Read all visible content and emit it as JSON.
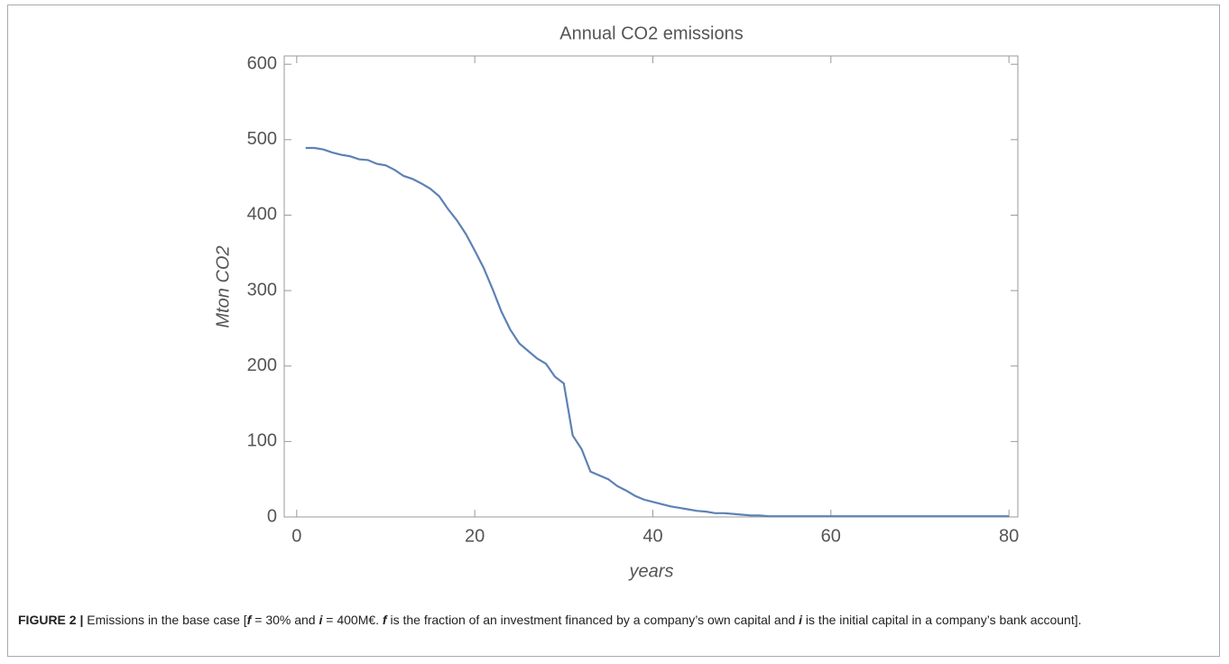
{
  "chart_data": {
    "type": "line",
    "title": "Annual CO2 emissions",
    "x_label": "years",
    "y_label": "Mton CO2",
    "x": [
      1,
      2,
      3,
      4,
      5,
      6,
      7,
      8,
      9,
      10,
      11,
      12,
      13,
      14,
      15,
      16,
      17,
      18,
      19,
      20,
      21,
      22,
      23,
      24,
      25,
      26,
      27,
      28,
      29,
      30,
      31,
      32,
      33,
      34,
      35,
      36,
      37,
      38,
      39,
      40,
      41,
      42,
      43,
      44,
      45,
      46,
      47,
      48,
      49,
      50,
      51,
      52,
      53,
      54,
      55,
      56,
      57,
      58,
      59,
      60,
      61,
      62,
      63,
      64,
      65,
      66,
      67,
      68,
      69,
      70,
      71,
      72,
      73,
      74,
      75,
      76,
      77,
      78,
      79,
      80
    ],
    "series": [
      {
        "name": "emissions",
        "color": "#5e81b5",
        "values": [
          489,
          489,
          487,
          483,
          480,
          478,
          474,
          473,
          468,
          466,
          460,
          452,
          448,
          442,
          435,
          425,
          408,
          393,
          375,
          353,
          330,
          302,
          272,
          248,
          230,
          220,
          210,
          203,
          186,
          177,
          108,
          90,
          60,
          55,
          50,
          41,
          35,
          28,
          23,
          20,
          17,
          14,
          12,
          10,
          8,
          7,
          5,
          5,
          4,
          3,
          2,
          2,
          1,
          1,
          1,
          1,
          1,
          1,
          1,
          1,
          1,
          1,
          1,
          1,
          1,
          1,
          1,
          1,
          1,
          1,
          1,
          1,
          1,
          1,
          1,
          1,
          1,
          1,
          1,
          1
        ]
      }
    ],
    "xlim": [
      -1.4,
      81
    ],
    "ylim": [
      0,
      611
    ],
    "xticks": [
      0,
      20,
      40,
      60,
      80
    ],
    "yticks": [
      0,
      100,
      200,
      300,
      400,
      500,
      600
    ]
  },
  "caption": [
    "FIGURE 2 |",
    " Emissions in the base case [",
    "f",
    " = 30% and ",
    "i",
    " = 400M€. ",
    "f",
    " is the fraction of an investment financed by a company’s own capital and ",
    "i",
    " is the initial capital in a company’s bank account]."
  ]
}
